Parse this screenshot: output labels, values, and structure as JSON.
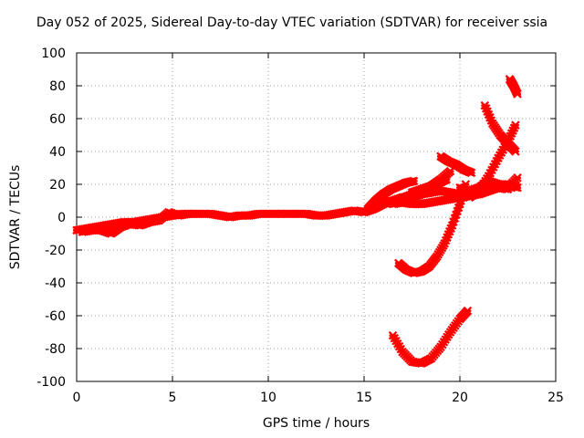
{
  "chart_data": {
    "type": "scatter",
    "title": "Day 052 of 2025, Sidereal Day-to-day VTEC variation (SDTVAR) for receiver ssia",
    "xlabel": "GPS time / hours",
    "ylabel": "SDTVAR / TECUs",
    "xlim": [
      0,
      25
    ],
    "ylim": [
      -100,
      100
    ],
    "xticks": [
      "0",
      "5",
      "10",
      "15",
      "20",
      "25"
    ],
    "yticks": [
      "-100",
      "-80",
      "-60",
      "-40",
      "-20",
      "0",
      "20",
      "40",
      "60",
      "80",
      "100"
    ],
    "grid": true,
    "marker_color": "#ff0000",
    "series": [
      {
        "x": [
          0.0,
          0.5,
          1.0,
          1.5,
          2.0,
          2.5,
          3.0,
          3.5,
          4.0,
          4.5,
          5.0,
          5.5,
          6.0,
          6.5,
          7.0,
          7.5,
          8.0,
          8.5,
          9.0,
          9.5,
          10.0,
          10.5,
          11.0,
          11.5,
          12.0,
          12.5,
          13.0,
          13.5,
          14.0,
          14.5,
          15.0,
          15.5,
          16.0,
          16.5,
          17.0,
          17.5
        ],
        "y": [
          -8,
          -7,
          -6,
          -5,
          -4,
          -3,
          -3,
          -2,
          -1,
          0,
          1,
          2,
          2,
          2,
          2,
          1,
          0,
          1,
          1,
          2,
          2,
          2,
          2,
          2,
          2,
          1,
          1,
          2,
          3,
          4,
          3,
          5,
          8,
          10,
          12,
          13
        ]
      },
      {
        "x": [
          0.3,
          0.8,
          1.3,
          1.8,
          2.3,
          2.8,
          3.3,
          3.8,
          4.3,
          4.8,
          5.3,
          5.8
        ],
        "y": [
          -9,
          -8,
          -8,
          -10,
          -6,
          -4,
          -5,
          -3,
          -2,
          3,
          1,
          2
        ]
      },
      {
        "x": [
          15.2,
          15.6,
          16.0,
          16.4,
          16.8,
          17.2,
          17.6
        ],
        "y": [
          5,
          10,
          14,
          17,
          19,
          21,
          22
        ]
      },
      {
        "x": [
          16.0,
          16.5,
          17.0,
          17.5,
          18.0,
          18.5,
          19.0,
          19.5,
          20.0,
          20.5,
          21.0,
          21.5,
          22.0,
          22.5,
          23.0
        ],
        "y": [
          10,
          9,
          10,
          12,
          14,
          15,
          16,
          15,
          14,
          15,
          17,
          19,
          20,
          20,
          18
        ]
      },
      {
        "x": [
          16.5,
          17.0,
          17.5,
          18.0,
          18.5,
          19.0,
          19.5,
          20.0,
          20.5,
          21.0,
          21.5,
          22.0,
          22.5
        ],
        "y": [
          8,
          9,
          8,
          8,
          9,
          10,
          11,
          12,
          13,
          14,
          16,
          18,
          17
        ]
      },
      {
        "x": [
          16.8,
          17.3,
          17.8,
          18.3,
          18.8,
          19.3
        ],
        "y": [
          10,
          13,
          15,
          18,
          20,
          23
        ]
      },
      {
        "x": [
          17.5,
          18.0,
          18.5,
          19.0,
          19.5
        ],
        "y": [
          15,
          17,
          19,
          23,
          28
        ]
      },
      {
        "x": [
          19.0,
          19.4,
          19.8,
          20.2,
          20.6
        ],
        "y": [
          37,
          34,
          32,
          29,
          27
        ]
      },
      {
        "x": [
          20.0,
          20.5,
          21.0,
          21.5,
          22.0,
          22.5,
          23.0
        ],
        "y": [
          18,
          16,
          18,
          22,
          20,
          19,
          18
        ]
      },
      {
        "x": [
          20.5,
          21.0,
          21.5,
          22.0,
          22.5,
          22.9
        ],
        "y": [
          12,
          16,
          25,
          36,
          46,
          56
        ]
      },
      {
        "x": [
          21.3,
          21.7,
          22.1,
          22.5,
          22.9
        ],
        "y": [
          68,
          57,
          50,
          45,
          40
        ]
      },
      {
        "x": [
          22.6,
          22.8,
          23.0
        ],
        "y": [
          84,
          80,
          75
        ]
      },
      {
        "x": [
          16.8,
          17.2,
          17.6,
          18.0,
          18.4,
          18.8,
          19.2,
          19.6,
          20.0,
          20.3
        ],
        "y": [
          -28,
          -32,
          -34,
          -33,
          -30,
          -24,
          -16,
          -5,
          8,
          20
        ]
      },
      {
        "x": [
          16.5,
          17.0,
          17.5,
          18.0,
          18.5,
          19.0,
          19.5,
          20.0,
          20.4
        ],
        "y": [
          -72,
          -82,
          -88,
          -89,
          -86,
          -79,
          -70,
          -62,
          -57
        ]
      },
      {
        "x": [
          22.0,
          22.5,
          23.0
        ],
        "y": [
          20,
          18,
          24
        ]
      }
    ]
  }
}
